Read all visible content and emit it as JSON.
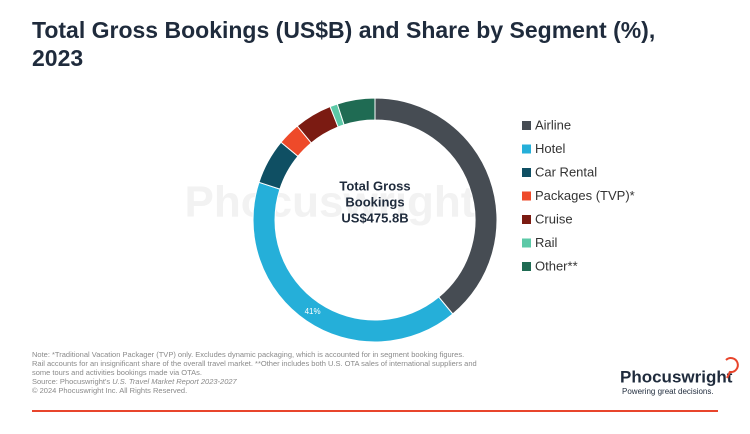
{
  "chart_data": {
    "type": "donut",
    "title": [
      "Total Gross Bookings (US$B) and Share by Segment (%),",
      "2023"
    ],
    "center_label": [
      "Total Gross",
      "Bookings",
      "US$475.8B"
    ],
    "categories": [
      "Airline",
      "Hotel",
      "Car Rental",
      "Packages (TVP)*",
      "Cruise",
      "Rail",
      "Other**"
    ],
    "values": [
      39,
      41,
      6,
      3,
      5,
      1,
      5
    ],
    "value_labels": [
      null,
      "41%",
      null,
      null,
      null,
      null,
      null
    ],
    "colors": [
      "#464c53",
      "#25afd9",
      "#0f4f63",
      "#ee4a2a",
      "#7b1b12",
      "#5cc9a7",
      "#1f6b53"
    ],
    "legend": "right"
  },
  "watermark": "Phocuswright",
  "footnotes": [
    "Note: *Traditional Vacation Packager (TVP) only. Excludes dynamic packaging, which is accounted for in segment booking figures.",
    "Rail accounts for an insignificant share of the overall travel market. **Other includes both U.S. OTA sales of international suppliers and",
    "some tours and activities bookings made via OTAs."
  ],
  "source": {
    "prefix": "Source: Phocuswright's ",
    "title": "U.S. Travel Market Report 2023-2027"
  },
  "copyright": "© 2024 Phocuswright Inc. All Rights Reserved.",
  "logo": {
    "name": "Phocuswright",
    "tagline": "Powering great decisions."
  }
}
